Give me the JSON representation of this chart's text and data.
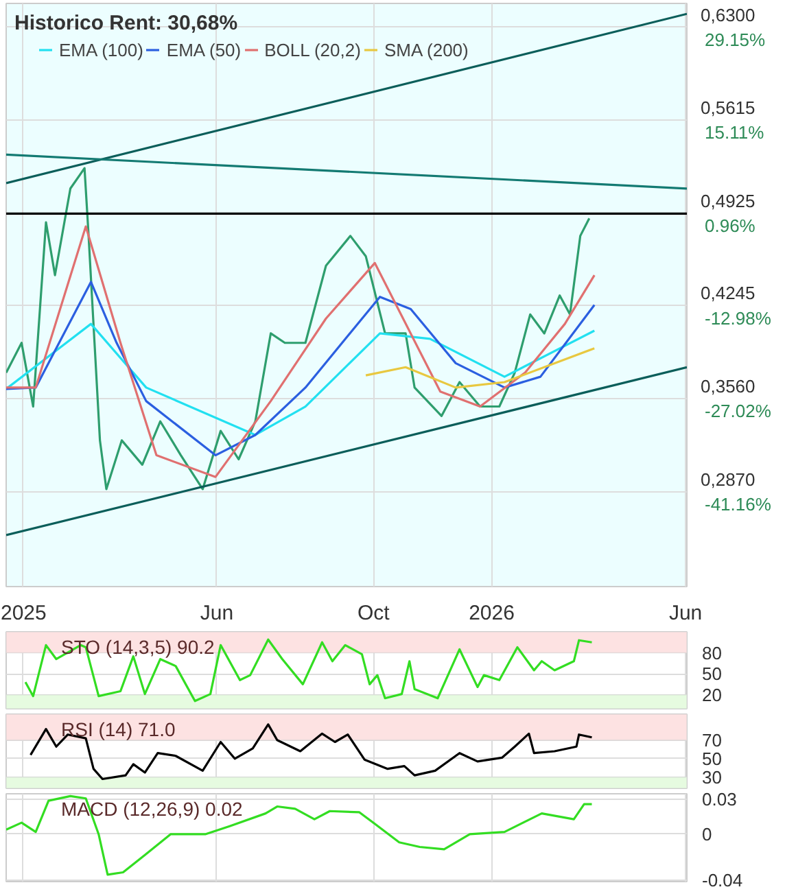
{
  "chart_data": [
    {
      "type": "line",
      "title": "Historico  Rent: 30,68%",
      "xlim": [
        "2024-12-19",
        "2026-06-02"
      ],
      "ylim": [
        0.217,
        0.6477
      ],
      "xticks": [
        {
          "value": "2025-01-01",
          "label": "2025"
        },
        {
          "value": "2025-06-01",
          "label": "Jun"
        },
        {
          "value": "2025-10-01",
          "label": "Oct"
        },
        {
          "value": "2026-01-01",
          "label": "2026"
        },
        {
          "value": "2026-06-01",
          "label": "Jun"
        }
      ],
      "yticks": [
        {
          "value": 0.63,
          "label": "0,6300"
        },
        {
          "value": 0.5615,
          "label": "0,5615"
        },
        {
          "value": 0.4925,
          "label": "0,4925"
        },
        {
          "value": 0.4245,
          "label": "0,4245"
        },
        {
          "value": 0.356,
          "label": "0,3560"
        },
        {
          "value": 0.287,
          "label": "0,2870"
        }
      ],
      "y2lim": [
        -55.51,
        32.79
      ],
      "y2ticks": [
        {
          "value": 29.15,
          "label": "29.15%"
        },
        {
          "value": 15.11,
          "label": "15.11%"
        },
        {
          "value": 0.96,
          "label": "0.96%"
        },
        {
          "value": -12.98,
          "label": "-12.98%"
        },
        {
          "value": -27.02,
          "label": "-27.02%"
        },
        {
          "value": -41.16,
          "label": "-41.16%"
        }
      ],
      "grid": true,
      "legend": "top left",
      "ref_lines": [
        {
          "axis": "y",
          "value": 0.4925,
          "color": "#000000"
        }
      ],
      "series": [
        {
          "color": "#2e9e6e",
          "x": [
            "2024-12-19",
            "2024-12-31",
            "2025-01-09",
            "2025-01-19",
            "2025-01-26",
            "2025-02-07",
            "2025-02-18",
            "2025-02-21",
            "2025-03-02",
            "2025-03-07",
            "2025-03-19",
            "2025-04-04",
            "2025-04-18",
            "2025-05-04",
            "2025-05-21",
            "2025-06-04",
            "2025-06-18",
            "2025-07-01",
            "2025-07-13",
            "2025-07-24",
            "2025-08-09",
            "2025-08-25",
            "2025-09-13",
            "2025-09-25",
            "2025-10-10",
            "2025-10-26",
            "2025-11-02",
            "2025-11-23",
            "2025-12-07",
            "2025-12-23",
            "2026-01-07",
            "2026-01-19",
            "2026-01-31",
            "2026-02-11",
            "2026-02-23",
            "2026-03-03",
            "2026-03-11",
            "2026-03-18"
          ],
          "values": [
            0.375,
            0.397,
            0.35,
            0.486,
            0.447,
            0.511,
            0.526,
            0.479,
            0.325,
            0.289,
            0.325,
            0.307,
            0.339,
            0.314,
            0.289,
            0.332,
            0.311,
            0.339,
            0.404,
            0.397,
            0.397,
            0.454,
            0.476,
            0.461,
            0.404,
            0.404,
            0.364,
            0.343,
            0.368,
            0.35,
            0.35,
            0.375,
            0.418,
            0.404,
            0.432,
            0.418,
            0.476,
            0.489
          ]
        },
        {
          "name": "EMA (100)",
          "color": "#22e0f0",
          "x": [
            "2024-12-19",
            "2025-02-23",
            "2025-04-07",
            "2025-07-01",
            "2025-08-09",
            "2025-10-06",
            "2025-11-14",
            "2026-01-11",
            "2026-03-22"
          ],
          "values": [
            0.363,
            0.411,
            0.364,
            0.329,
            0.35,
            0.404,
            0.4,
            0.372,
            0.406
          ]
        },
        {
          "name": "EMA (50)",
          "color": "#2b5fe0",
          "x": [
            "2024-12-19",
            "2025-01-11",
            "2025-02-23",
            "2025-03-15",
            "2025-04-07",
            "2025-05-31",
            "2025-07-01",
            "2025-08-09",
            "2025-10-06",
            "2025-10-30",
            "2025-12-04",
            "2026-01-11",
            "2026-02-08",
            "2026-03-22"
          ],
          "values": [
            0.363,
            0.364,
            0.442,
            0.397,
            0.354,
            0.314,
            0.329,
            0.364,
            0.431,
            0.422,
            0.382,
            0.364,
            0.372,
            0.425
          ]
        },
        {
          "name": "BOLL (20,2)",
          "color": "#e07070",
          "x": [
            "2024-12-19",
            "2025-01-11",
            "2025-02-19",
            "2025-03-18",
            "2025-04-15",
            "2025-05-31",
            "2025-07-13",
            "2025-08-25",
            "2025-10-02",
            "2025-11-22",
            "2025-12-23",
            "2026-01-27",
            "2026-02-27",
            "2026-03-22"
          ],
          "values": [
            0.364,
            0.364,
            0.483,
            0.397,
            0.314,
            0.298,
            0.354,
            0.415,
            0.456,
            0.361,
            0.35,
            0.375,
            0.411,
            0.447
          ]
        },
        {
          "name": "SMA (200)",
          "color": "#e8c840",
          "x": [
            "2025-09-25",
            "2025-10-26",
            "2025-12-04",
            "2026-01-11",
            "2026-03-22"
          ],
          "values": [
            0.373,
            0.379,
            0.364,
            0.368,
            0.393
          ]
        },
        {
          "color": "#0b5e5a",
          "x": [
            "2024-12-19",
            "2026-06-02"
          ],
          "values": [
            0.515,
            0.64
          ]
        },
        {
          "color": "#0b5e5a",
          "x": [
            "2024-12-19",
            "2026-06-02"
          ],
          "values": [
            0.255,
            0.379
          ]
        },
        {
          "color": "#137a72",
          "x": [
            "2024-12-19",
            "2026-06-02"
          ],
          "values": [
            0.536,
            0.511
          ]
        }
      ]
    },
    {
      "type": "line",
      "title": "STO (14,3,5) 90.2",
      "xlim": [
        "2024-12-19",
        "2026-06-02"
      ],
      "ylim": [
        0,
        110
      ],
      "yticks": [
        80,
        50,
        20
      ],
      "tick_labels": "y",
      "grid": true,
      "bands": [
        {
          "axis": "y",
          "from": 80,
          "to": 110,
          "color": "#fde2e2"
        },
        {
          "axis": "y",
          "from": 0,
          "to": 20,
          "color": "#e6fbe0"
        }
      ],
      "series": [
        {
          "color": "#33dd22",
          "x": [
            "2025-01-03",
            "2025-01-09",
            "2025-01-19",
            "2025-01-27",
            "2025-02-15",
            "2025-02-19",
            "2025-03-01",
            "2025-03-18",
            "2025-03-28",
            "2025-04-06",
            "2025-04-18",
            "2025-04-30",
            "2025-05-15",
            "2025-05-27",
            "2025-06-04",
            "2025-06-19",
            "2025-06-27",
            "2025-07-11",
            "2025-07-22",
            "2025-08-07",
            "2025-08-22",
            "2025-08-30",
            "2025-09-09",
            "2025-09-22",
            "2025-09-28",
            "2025-10-04",
            "2025-10-10",
            "2025-10-23",
            "2025-10-29",
            "2025-11-02",
            "2025-11-20",
            "2025-12-07",
            "2025-12-21",
            "2025-12-26",
            "2026-01-07",
            "2026-01-21",
            "2026-02-03",
            "2026-02-09",
            "2026-02-19",
            "2026-03-06",
            "2026-03-10",
            "2026-03-20"
          ],
          "values": [
            38,
            18,
            91,
            71,
            91,
            88,
            18,
            25,
            75,
            21,
            71,
            61,
            11,
            21,
            91,
            41,
            48,
            99,
            71,
            35,
            95,
            68,
            91,
            78,
            35,
            48,
            15,
            21,
            68,
            28,
            15,
            85,
            31,
            48,
            41,
            88,
            55,
            68,
            55,
            68,
            98,
            95
          ]
        }
      ]
    },
    {
      "type": "line",
      "title": "RSI (14) 71.0",
      "xlim": [
        "2024-12-19",
        "2026-06-02"
      ],
      "ylim": [
        18,
        98
      ],
      "yticks": [
        70,
        50,
        30
      ],
      "tick_labels": "y",
      "grid": true,
      "bands": [
        {
          "axis": "y",
          "from": 70,
          "to": 98,
          "color": "#fde2e2"
        },
        {
          "axis": "y",
          "from": 18,
          "to": 30,
          "color": "#e6fbe0"
        }
      ],
      "series": [
        {
          "color": "#000000",
          "x": [
            "2025-01-07",
            "2025-01-19",
            "2025-01-27",
            "2025-02-05",
            "2025-02-19",
            "2025-02-25",
            "2025-03-04",
            "2025-03-22",
            "2025-03-28",
            "2025-04-06",
            "2025-04-16",
            "2025-04-30",
            "2025-05-21",
            "2025-06-04",
            "2025-06-15",
            "2025-06-29",
            "2025-07-11",
            "2025-07-18",
            "2025-08-05",
            "2025-08-22",
            "2025-09-01",
            "2025-09-11",
            "2025-09-24",
            "2025-10-12",
            "2025-10-25",
            "2025-11-02",
            "2025-11-18",
            "2025-12-07",
            "2025-12-21",
            "2026-01-09",
            "2026-01-19",
            "2026-01-30",
            "2026-02-03",
            "2026-02-19",
            "2026-03-08",
            "2026-03-10",
            "2026-03-20"
          ],
          "values": [
            54,
            82,
            63,
            76,
            72,
            39,
            28,
            32,
            44,
            35,
            56,
            53,
            37,
            68,
            50,
            61,
            87,
            70,
            58,
            77,
            68,
            76,
            49,
            39,
            42,
            32,
            37,
            56,
            47,
            51,
            63,
            77,
            56,
            58,
            63,
            76,
            73
          ]
        }
      ]
    },
    {
      "type": "line",
      "title": "MACD (12,26,9) 0.02",
      "xlim": [
        "2024-12-19",
        "2026-06-02"
      ],
      "ylim": [
        -0.041,
        0.035
      ],
      "yticks": [
        0.03,
        0,
        -0.04
      ],
      "tick_labels": "y",
      "grid": true,
      "series": [
        {
          "color": "#33dd22",
          "x": [
            "2024-12-19",
            "2024-12-31",
            "2025-01-11",
            "2025-01-21",
            "2025-02-07",
            "2025-02-19",
            "2025-03-01",
            "2025-03-08",
            "2025-03-20",
            "2025-04-06",
            "2025-04-26",
            "2025-05-23",
            "2025-06-11",
            "2025-07-09",
            "2025-07-18",
            "2025-08-01",
            "2025-08-16",
            "2025-08-28",
            "2025-09-20",
            "2025-10-02",
            "2025-10-21",
            "2025-11-06",
            "2025-11-25",
            "2025-12-15",
            "2026-01-11",
            "2026-02-09",
            "2026-03-06",
            "2026-03-14",
            "2026-03-20"
          ],
          "values": [
            0.004,
            0.01,
            0.002,
            0.029,
            0.033,
            0.031,
            0,
            -0.035,
            -0.033,
            -0.018,
            0,
            0,
            0.007,
            0.018,
            0.024,
            0.022,
            0.013,
            0.02,
            0.019,
            0.009,
            -0.007,
            -0.011,
            -0.013,
            0,
            0.002,
            0.018,
            0.013,
            0.026,
            0.026
          ]
        }
      ]
    }
  ]
}
